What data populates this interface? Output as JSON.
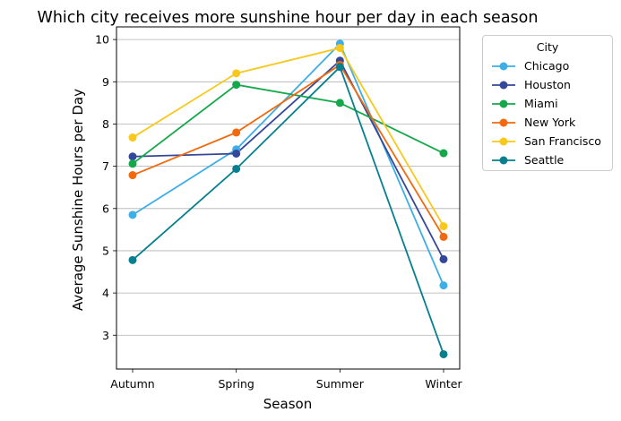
{
  "chart_data": {
    "type": "line",
    "title": "Which city receives more sunshine hour per day in each season",
    "xlabel": "Season",
    "ylabel": "Average Sunshine Hours per Day",
    "categories": [
      "Autumn",
      "Spring",
      "Summer",
      "Winter"
    ],
    "ylim": [
      2.2,
      10.3
    ],
    "yticks": [
      3,
      4,
      5,
      6,
      7,
      8,
      9,
      10
    ],
    "grid": "horizontal",
    "legend": {
      "title": "City",
      "placement": "outside-right"
    },
    "series": [
      {
        "name": "Chicago",
        "color": "#3daee6",
        "values": [
          5.85,
          7.4,
          9.9,
          4.18
        ]
      },
      {
        "name": "Houston",
        "color": "#35479a",
        "values": [
          7.23,
          7.3,
          9.5,
          4.8
        ]
      },
      {
        "name": "Miami",
        "color": "#14a84b",
        "values": [
          7.06,
          8.93,
          8.5,
          7.31
        ]
      },
      {
        "name": "New York",
        "color": "#f26a0e",
        "values": [
          6.79,
          7.8,
          9.4,
          5.33
        ]
      },
      {
        "name": "San Francisco",
        "color": "#f8c81c",
        "values": [
          7.68,
          9.2,
          9.8,
          5.58
        ]
      },
      {
        "name": "Seattle",
        "color": "#067f8f",
        "values": [
          4.78,
          6.94,
          9.35,
          2.55
        ]
      }
    ]
  }
}
